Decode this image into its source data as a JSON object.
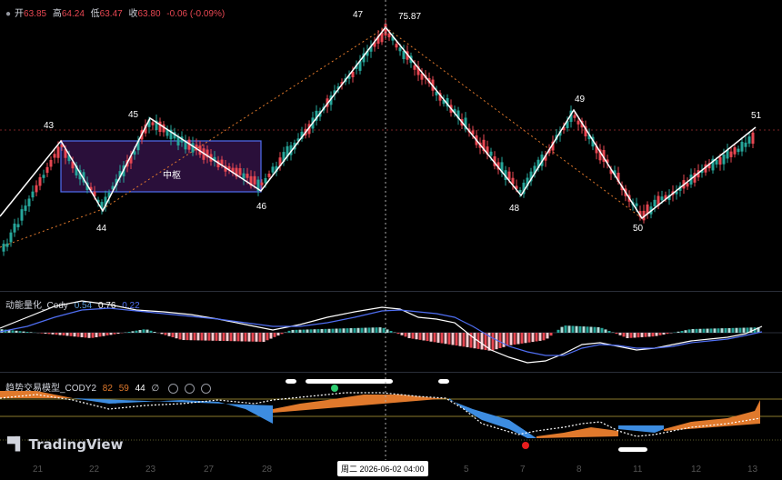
{
  "ohlc": {
    "open_label": "开",
    "open": "63.85",
    "high_label": "高",
    "high": "64.24",
    "low_label": "低",
    "low": "63.47",
    "close_label": "收",
    "close": "63.80",
    "change": "-0.06 (-0.09%)"
  },
  "price_labels": {
    "l43": "43",
    "l44": "44",
    "l45": "45",
    "l46": "46",
    "l47": "47",
    "l48": "48",
    "l49": "49",
    "l50": "50",
    "l51": "51",
    "peak_price": "75.87"
  },
  "zhongshu_label": "中枢",
  "indicator1": {
    "name": "动能量化_Cody",
    "v1": "0.54",
    "v2": "0.76",
    "v3": "0.22"
  },
  "indicator2": {
    "name": "趋势交易模型_CODY2",
    "v1": "82",
    "v2": "59",
    "v3": "44",
    "v4": "∅"
  },
  "x_ticks": [
    "21",
    "22",
    "23",
    "27",
    "28",
    "5",
    "7",
    "8",
    "11",
    "12",
    "13"
  ],
  "cursor_label": "周二 2026-06-02   04:00",
  "brand": "TradingView",
  "colors": {
    "up": "#e84752",
    "down": "#26a69a",
    "zhongshu_fill": "#2a0f3a",
    "zhongshu_border": "#4f6ef2"
  }
}
